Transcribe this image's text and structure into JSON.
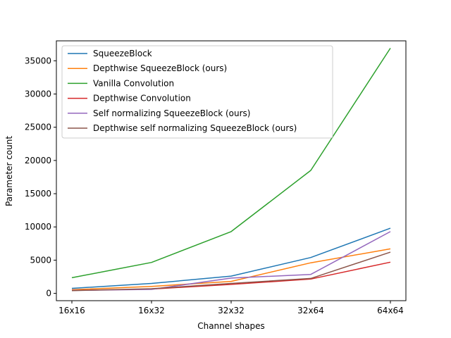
{
  "chart_data": {
    "type": "line",
    "categories": [
      "16x16",
      "16x32",
      "32x32",
      "32x64",
      "64x64"
    ],
    "xlabel": "Channel shapes",
    "ylabel": "Parameter count",
    "ylim": [
      -1100,
      38000
    ],
    "yticks": [
      0,
      5000,
      10000,
      15000,
      20000,
      25000,
      30000,
      35000
    ],
    "grid": false,
    "legend_position": "top-left",
    "series": [
      {
        "name": "SqueezeBlock",
        "color": "#1f77b4",
        "values": [
          750,
          1500,
          2600,
          5400,
          9800
        ]
      },
      {
        "name": "Depthwise SqueezeBlock (ours)",
        "color": "#ff7f0e",
        "values": [
          550,
          1050,
          1800,
          4600,
          6700
        ]
      },
      {
        "name": "Vanilla Convolution",
        "color": "#2ca02c",
        "values": [
          2350,
          4650,
          9300,
          18500,
          36900
        ]
      },
      {
        "name": "Depthwise Convolution",
        "color": "#d62728",
        "values": [
          450,
          650,
          1350,
          2150,
          4700
        ]
      },
      {
        "name": "Self normalizing SqueezeBlock (ours)",
        "color": "#9467bd",
        "values": [
          450,
          600,
          2300,
          2850,
          9300
        ]
      },
      {
        "name": "Depthwise self normalizing SqueezeBlock (ours)",
        "color": "#8c564b",
        "values": [
          400,
          700,
          1500,
          2250,
          6200
        ]
      }
    ]
  }
}
